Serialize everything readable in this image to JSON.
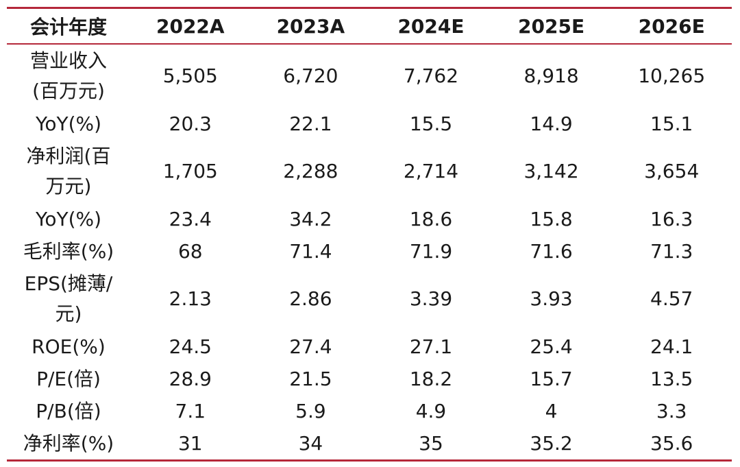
{
  "header": [
    "会计年度",
    "2022A",
    "2023A",
    "2024E",
    "2025E",
    "2026E"
  ],
  "rows": [
    {
      "label": "营业收入\n(百万元)",
      "values": [
        "5,505",
        "6,720",
        "7,762",
        "8,918",
        "10,265"
      ],
      "tall": true
    },
    {
      "label": "YoY(%)",
      "values": [
        "20.3",
        "22.1",
        "15.5",
        "14.9",
        "15.1"
      ],
      "tall": false
    },
    {
      "label": "净利润(百\n万元)",
      "values": [
        "1,705",
        "2,288",
        "2,714",
        "3,142",
        "3,654"
      ],
      "tall": true
    },
    {
      "label": "YoY(%)",
      "values": [
        "23.4",
        "34.2",
        "18.6",
        "15.8",
        "16.3"
      ],
      "tall": false
    },
    {
      "label": "毛利率(%)",
      "values": [
        "68",
        "71.4",
        "71.9",
        "71.6",
        "71.3"
      ],
      "tall": false
    },
    {
      "label": "EPS(摊薄/\n元)",
      "values": [
        "2.13",
        "2.86",
        "3.39",
        "3.93",
        "4.57"
      ],
      "tall": true
    },
    {
      "label": "ROE(%)",
      "values": [
        "24.5",
        "27.4",
        "27.1",
        "25.4",
        "24.1"
      ],
      "tall": false
    },
    {
      "label": "P/E(倍)",
      "values": [
        "28.9",
        "21.5",
        "18.2",
        "15.7",
        "13.5"
      ],
      "tall": false
    },
    {
      "label": "P/B(倍)",
      "values": [
        "7.1",
        "5.9",
        "4.9",
        "4",
        "3.3"
      ],
      "tall": false
    },
    {
      "label": "净利率(%)",
      "values": [
        "31",
        "34",
        "35",
        "35.2",
        "35.6"
      ],
      "tall": false
    }
  ],
  "colors": {
    "rule": "#b5283a"
  }
}
